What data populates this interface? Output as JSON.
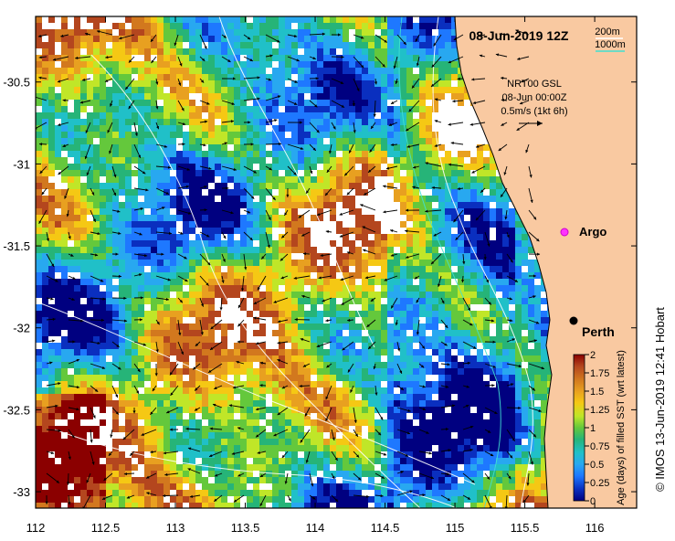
{
  "title": "08-Jun-2019 12Z",
  "depth_legend": {
    "items": [
      {
        "label": "200m",
        "color": "#ffffff"
      },
      {
        "label": "1000m",
        "color": "#40e0d0"
      }
    ]
  },
  "velocity_info": {
    "line1": "NRT00 GSL",
    "line2": "08-Jun 00:00Z",
    "line3": "0.5m/s (1kt 6h)"
  },
  "places": [
    {
      "name": "Argo",
      "lon": 115.82,
      "lat": -31.45,
      "marker": "argo-float"
    },
    {
      "name": "Perth",
      "lon": 115.86,
      "lat": -31.95,
      "marker": "city"
    }
  ],
  "x_axis": {
    "ticks": [
      "112",
      "112.5",
      "113",
      "113.5",
      "114",
      "114.5",
      "115",
      "115.5",
      "116"
    ],
    "range": [
      112,
      116.3
    ]
  },
  "y_axis": {
    "ticks": [
      "-30.5",
      "-31",
      "-31.5",
      "-32",
      "-32.5",
      "-33"
    ],
    "range": [
      -33.1,
      -30.1
    ]
  },
  "colorbar": {
    "label": "Age (days) of filled SST (wrt latest)",
    "ticks": [
      "0",
      "0.25",
      "0.5",
      "0.75",
      "1",
      "1.25",
      "1.5",
      "1.75",
      "2"
    ],
    "range": [
      0,
      2
    ]
  },
  "credit": "© IMOS 13-Jun-2019 12:41 Hobart",
  "colors": {
    "land": "#f9c9a1",
    "missing": "#ffffff",
    "scale": [
      "#000080",
      "#0a2fbf",
      "#1e78ff",
      "#28a8f0",
      "#20c0c8",
      "#26b478",
      "#64c83c",
      "#c0e628",
      "#f5c814",
      "#e8a020",
      "#d2781e",
      "#b4461e",
      "#8b0000"
    ]
  }
}
